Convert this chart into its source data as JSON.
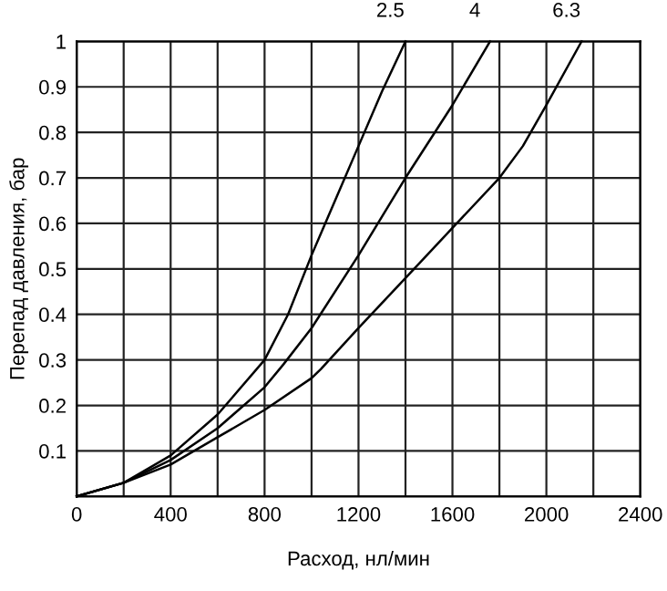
{
  "chart_data": {
    "type": "line",
    "xlabel": "Расход, нл/мин",
    "ylabel": "Перепад давления, бар",
    "xlim": [
      0,
      2400
    ],
    "ylim": [
      0,
      1
    ],
    "xticks": [
      0,
      {
        "value": 200,
        "label": null
      },
      400,
      {
        "value": 600,
        "label": null
      },
      800,
      {
        "value": 1000,
        "label": null
      },
      1200,
      {
        "value": 1400,
        "label": null
      },
      1600,
      {
        "value": 1800,
        "label": null
      },
      2000,
      {
        "value": 2200,
        "label": null
      },
      2400
    ],
    "yticks": [
      {
        "value": 0,
        "label": null
      },
      0.1,
      0.2,
      0.3,
      0.4,
      0.5,
      0.6,
      0.7,
      0.8,
      0.9,
      1
    ],
    "grid": true,
    "legend": false,
    "marker": "none",
    "line_style": "solid",
    "series": [
      {
        "name": "2.5",
        "color": "#000000",
        "x": [
          0,
          200,
          400,
          600,
          800,
          900,
          1000,
          1100,
          1200,
          1300,
          1400
        ],
        "values": [
          0,
          0.03,
          0.09,
          0.18,
          0.3,
          0.4,
          0.53,
          0.65,
          0.77,
          0.89,
          1.0
        ]
      },
      {
        "name": "4",
        "color": "#000000",
        "x": [
          0,
          200,
          400,
          600,
          800,
          880,
          1000,
          1200,
          1400,
          1600,
          1760
        ],
        "values": [
          0,
          0.03,
          0.08,
          0.15,
          0.24,
          0.29,
          0.37,
          0.53,
          0.7,
          0.86,
          1.0
        ]
      },
      {
        "name": "6.3",
        "color": "#000000",
        "x": [
          0,
          200,
          400,
          600,
          800,
          1000,
          1040,
          1200,
          1400,
          1600,
          1800,
          1900,
          2000,
          2150
        ],
        "values": [
          0,
          0.03,
          0.07,
          0.13,
          0.19,
          0.26,
          0.28,
          0.37,
          0.48,
          0.59,
          0.7,
          0.77,
          0.86,
          1.0
        ]
      }
    ]
  }
}
